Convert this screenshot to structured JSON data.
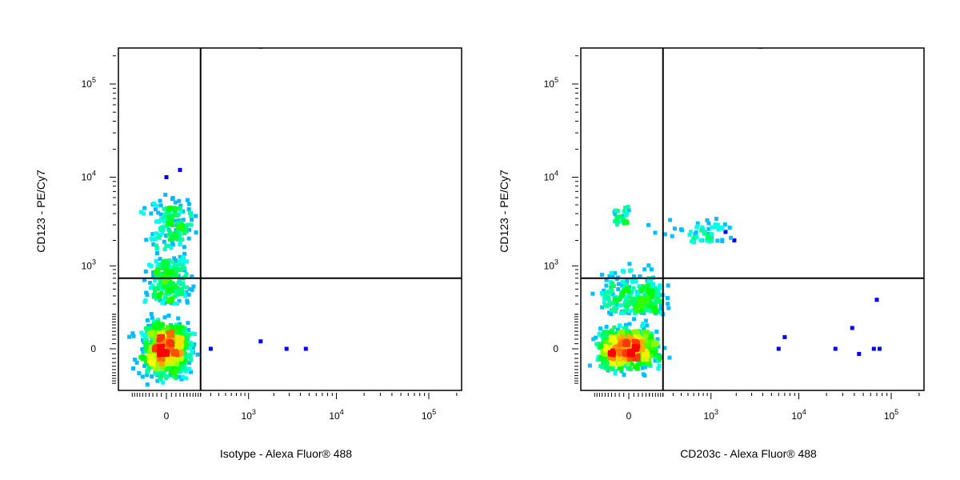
{
  "chart_data": [
    {
      "type": "scatter",
      "subtype": "flow-cytometry-density-dot-plot",
      "title": "",
      "xlabel": "Isotype - Alexa Fluor® 488",
      "ylabel": "CD123 - PE/Cy7",
      "x_scale": "biexponential",
      "y_scale": "biexponential",
      "xlim": [
        -300,
        200000
      ],
      "ylim": [
        -300,
        250000
      ],
      "x_ticks": [
        {
          "label": "0",
          "value": 0
        },
        {
          "label": "10",
          "exp": "3",
          "value": 1000
        },
        {
          "label": "10",
          "exp": "4",
          "value": 10000
        },
        {
          "label": "10",
          "exp": "5",
          "value": 100000
        }
      ],
      "y_ticks": [
        {
          "label": "0",
          "value": 0
        },
        {
          "label": "10",
          "exp": "3",
          "value": 1000
        },
        {
          "label": "10",
          "exp": "4",
          "value": 10000
        },
        {
          "label": "10",
          "exp": "5",
          "value": 100000
        }
      ],
      "gates": {
        "x": 200,
        "y": 700
      },
      "color_scale": [
        "#0000ff",
        "#00ffff",
        "#00ff00",
        "#ffff00",
        "#ff0000"
      ],
      "populations": [
        {
          "x": -5,
          "y": 0,
          "sx": 55,
          "sy": 60,
          "n": 900
        },
        {
          "x": 10,
          "y": 300,
          "sx": 45,
          "sy": 600,
          "n": 250
        },
        {
          "x": 20,
          "y": 2000,
          "sx": 50,
          "sy": 1700,
          "n": 150
        }
      ],
      "outliers": [
        {
          "x": 300,
          "y": 0
        },
        {
          "x": 1400,
          "y": 30
        },
        {
          "x": 2800,
          "y": 0
        },
        {
          "x": 4600,
          "y": 0
        },
        {
          "x": 1400,
          "y": 250000
        },
        {
          "x": 0,
          "y": 10000
        },
        {
          "x": 60,
          "y": 12000
        }
      ]
    },
    {
      "type": "scatter",
      "subtype": "flow-cytometry-density-dot-plot",
      "title": "",
      "xlabel": "CD203c - Alexa Fluor® 488",
      "ylabel": "CD123 - PE/Cy7",
      "x_scale": "biexponential",
      "y_scale": "biexponential",
      "xlim": [
        -300,
        200000
      ],
      "ylim": [
        -300,
        250000
      ],
      "x_ticks": [
        {
          "label": "0",
          "value": 0
        },
        {
          "label": "10",
          "exp": "3",
          "value": 1000
        },
        {
          "label": "10",
          "exp": "4",
          "value": 10000
        },
        {
          "label": "10",
          "exp": "5",
          "value": 100000
        }
      ],
      "y_ticks": [
        {
          "label": "0",
          "value": 0
        },
        {
          "label": "10",
          "exp": "3",
          "value": 1000
        },
        {
          "label": "10",
          "exp": "4",
          "value": 10000
        },
        {
          "label": "10",
          "exp": "5",
          "value": 100000
        }
      ],
      "gates": {
        "x": 200,
        "y": 700
      },
      "color_scale": [
        "#0000ff",
        "#00ffff",
        "#00ff00",
        "#ffff00",
        "#ff0000"
      ],
      "populations": [
        {
          "x": -5,
          "y": 0,
          "sx": 70,
          "sy": 45,
          "n": 900
        },
        {
          "x": 40,
          "y": 200,
          "sx": 90,
          "sy": 260,
          "n": 280
        },
        {
          "x": -30,
          "y": 3000,
          "sx": 20,
          "sy": 900,
          "n": 30
        },
        {
          "x": 800,
          "y": 1900,
          "sx": 500,
          "sy": 700,
          "n": 60
        }
      ],
      "outliers": [
        {
          "x": 6000,
          "y": 0
        },
        {
          "x": 7000,
          "y": 50
        },
        {
          "x": 25000,
          "y": 0
        },
        {
          "x": 38000,
          "y": 100
        },
        {
          "x": 45000,
          "y": -20
        },
        {
          "x": 70000,
          "y": 350
        },
        {
          "x": 65000,
          "y": 0
        },
        {
          "x": 75000,
          "y": 0
        },
        {
          "x": 3800,
          "y": 250000
        },
        {
          "x": 1900,
          "y": 2000
        },
        {
          "x": 1500,
          "y": 2500
        }
      ]
    }
  ]
}
